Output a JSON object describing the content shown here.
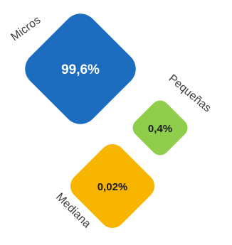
{
  "chart_data": {
    "type": "diamond-area",
    "title": "",
    "series": [
      {
        "category": "Micros",
        "value": 99.6,
        "label": "99,6%",
        "color": "#1c6cc0",
        "text_color": "#ffffff"
      },
      {
        "category": "Pequeñas",
        "value": 0.4,
        "label": "0,4%",
        "color": "#8fce4a",
        "text_color": "#1a1a1a"
      },
      {
        "category": "Mediana",
        "value": 0.02,
        "label": "0,02%",
        "color": "#f7b500",
        "text_color": "#1a1a1a"
      }
    ]
  }
}
